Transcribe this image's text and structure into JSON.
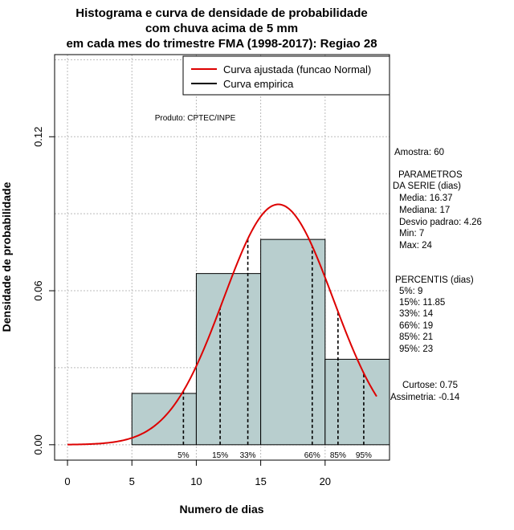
{
  "chart_data": {
    "type": "bar",
    "title": [
      "Histograma e curva de densidade de probabilidade",
      "com chuva acima de 5 mm",
      "em cada mes do trimestre FMA (1998-2017): Regiao 28"
    ],
    "xlabel": "Numero de dias",
    "ylabel": "Densidade de probabilidade",
    "xlim": [
      -1,
      25
    ],
    "ylim": [
      -0.006,
      0.152
    ],
    "xticks": [
      0,
      5,
      10,
      15,
      20
    ],
    "yticks": [
      0.0,
      0.06,
      0.12
    ],
    "ytick_labels": [
      "0.00",
      "0.06",
      "0.12"
    ],
    "grid": true,
    "histogram": {
      "bins": [
        [
          5,
          10
        ],
        [
          10,
          15
        ],
        [
          15,
          20
        ],
        [
          20,
          25
        ]
      ],
      "density": [
        0.02,
        0.0667,
        0.08,
        0.0333
      ],
      "fill_color": "#b8cece"
    },
    "normal_curve": {
      "label": "Curva ajustada (funcao Normal)",
      "mean": 16.37,
      "sd": 4.26,
      "x_range": [
        0,
        24
      ],
      "color": "#dd0000"
    },
    "legend": {
      "position": "top-right",
      "entries": [
        {
          "label": "Curva ajustada (funcao Normal)",
          "color": "#dd0000"
        },
        {
          "label": "Curva empirica",
          "color": "#000000"
        }
      ]
    },
    "percentiles": [
      {
        "label": "5%",
        "x": 9
      },
      {
        "label": "15%",
        "x": 11.85
      },
      {
        "label": "33%",
        "x": 14
      },
      {
        "label": "66%",
        "x": 19
      },
      {
        "label": "85%",
        "x": 21
      },
      {
        "label": "95%",
        "x": 23
      }
    ],
    "annotations": {
      "produto": "Produto: CPTEC/INPE",
      "amostra": "Amostra: 60",
      "parametros": [
        "PARAMETROS",
        "DA SERIE (dias)",
        "Media: 16.37",
        "Mediana: 17",
        "Desvio padrao: 4.26",
        "Min: 7",
        "Max: 24"
      ],
      "percentis": [
        "PERCENTIS (dias)",
        "5%: 9",
        "15%: 11.85",
        "33%: 14",
        "66%: 19",
        "85%: 21",
        "95%: 23"
      ],
      "curtose": "Curtose: 0.75",
      "assimetria": "Assimetria: -0.14"
    }
  }
}
